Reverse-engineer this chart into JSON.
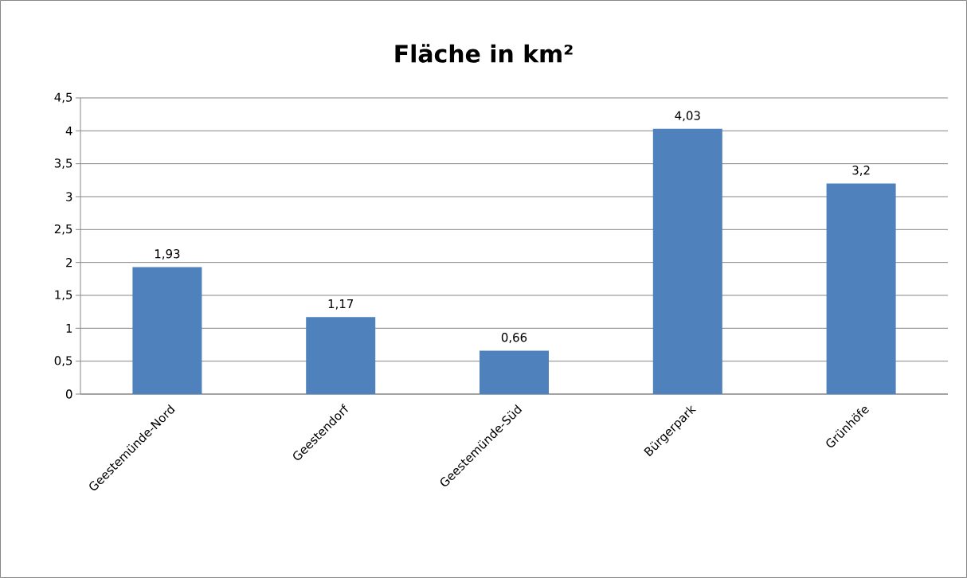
{
  "chart_data": {
    "type": "bar",
    "title": "Fläche in km²",
    "categories": [
      "Geestemünde-Nord",
      "Geestendorf",
      "Geestemünde-Süd",
      "Bürgerpark",
      "Grünhöfe"
    ],
    "values": [
      1.93,
      1.17,
      0.66,
      4.03,
      3.2
    ],
    "value_labels": [
      "1,93",
      "1,17",
      "0,66",
      "4,03",
      "3,2"
    ],
    "color": "#4f81bd",
    "ylim": [
      0,
      4.5
    ],
    "yticks": [
      0,
      {
        "value": 0.5,
        "label": "0,5"
      },
      1,
      {
        "value": 1.5,
        "label": "1,5"
      },
      2,
      {
        "value": 2.5,
        "label": "2,5"
      },
      3,
      {
        "value": 3.5,
        "label": "3,5"
      },
      4,
      {
        "value": 4.5,
        "label": "4,5"
      }
    ],
    "grid": "y"
  }
}
